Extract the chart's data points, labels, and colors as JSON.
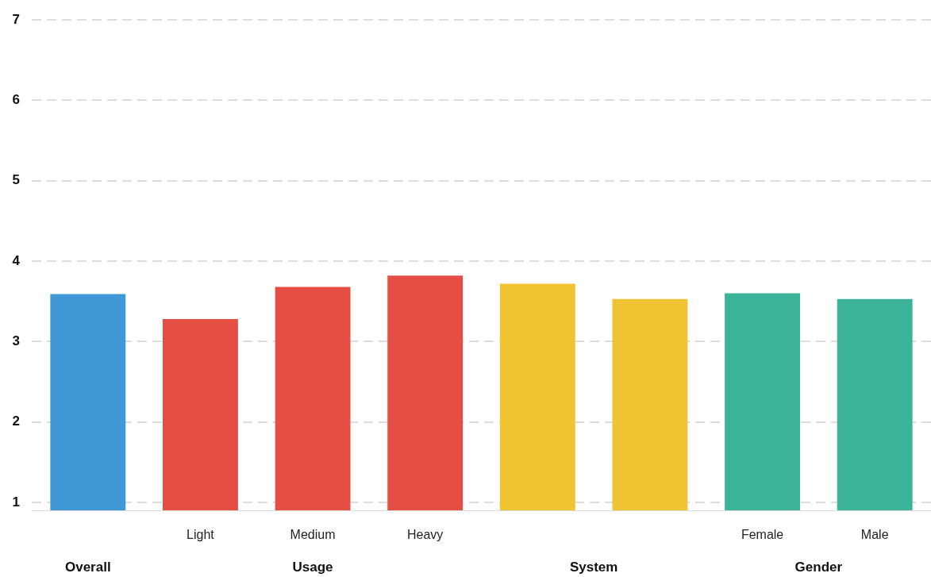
{
  "chart_data": {
    "type": "bar",
    "categories": [
      null,
      "Light",
      "Medium",
      "Heavy",
      null,
      null,
      "Female",
      "Male"
    ],
    "series": [
      {
        "name": "Overall",
        "color": "#4098d7",
        "values": [
          3.59,
          null,
          null,
          null,
          null,
          null,
          null,
          null
        ]
      },
      {
        "name": "Usage",
        "color": "#e54e43",
        "values": [
          null,
          3.28,
          3.68,
          3.82,
          null,
          null,
          null,
          null
        ]
      },
      {
        "name": "System",
        "color": "#efc331",
        "values": [
          null,
          null,
          null,
          null,
          3.72,
          3.53,
          null,
          null
        ]
      },
      {
        "name": "Gender",
        "color": "#3cb49a",
        "values": [
          null,
          null,
          null,
          null,
          null,
          null,
          3.6,
          3.53
        ]
      }
    ],
    "ylim": [
      0.9,
      7
    ],
    "yticks": [
      1,
      2,
      3,
      4,
      5,
      6,
      7
    ],
    "grid": "y",
    "legend": false
  }
}
